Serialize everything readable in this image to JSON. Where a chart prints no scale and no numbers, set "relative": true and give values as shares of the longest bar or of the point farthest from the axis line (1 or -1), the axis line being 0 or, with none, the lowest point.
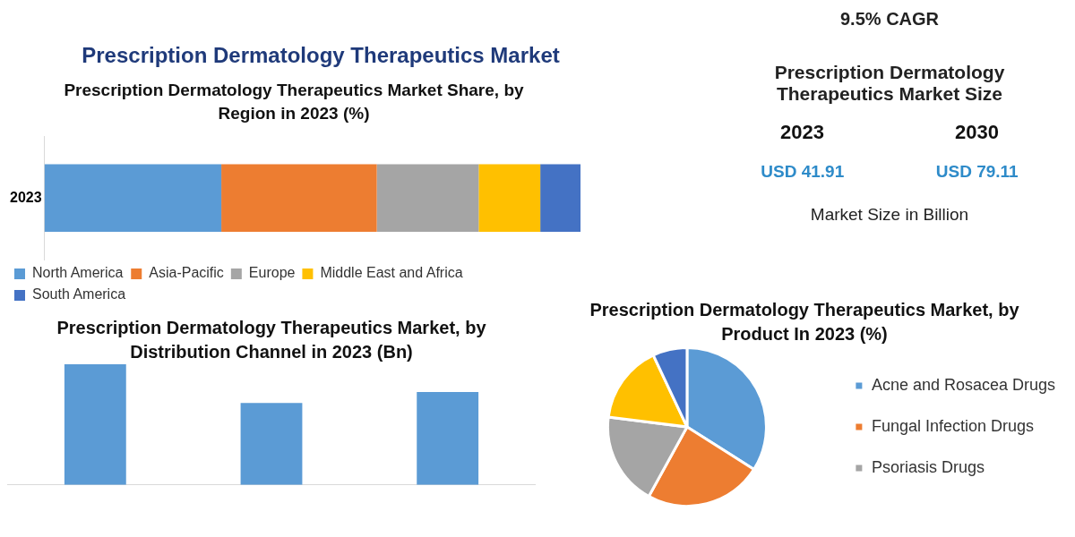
{
  "chart_data": [
    {
      "type": "bar",
      "title": "Prescription Dermatology Therapeutics Market",
      "subtitle": "Prescription Dermatology Therapeutics Market Share, by Region in 2023 (%)",
      "orientation": "horizontal",
      "stacked": true,
      "relative": true,
      "legend": "bottom",
      "categories": [
        "2023"
      ],
      "series": [
        {
          "name": "North America",
          "color": "#5b9bd5",
          "values": [
            0.33
          ]
        },
        {
          "name": "Asia-Pacific",
          "color": "#ed7d31",
          "values": [
            0.29
          ]
        },
        {
          "name": "Europe",
          "color": "#a5a5a5",
          "values": [
            0.19
          ]
        },
        {
          "name": "Middle East and Africa",
          "color": "#ffc000",
          "values": [
            0.115
          ]
        },
        {
          "name": "South America",
          "color": "#4472c4",
          "values": [
            0.075
          ]
        }
      ]
    },
    {
      "type": "other",
      "annotations": [
        "9.5% CAGR",
        "Prescription Dermatology Therapeutics Market Size",
        "2023",
        "2030",
        "USD 41.91",
        "USD 79.11",
        "Market Size in Billion"
      ]
    },
    {
      "type": "bar",
      "title": "Prescription Dermatology Therapeutics Market, by Distribution Channel in 2023 (Bn)",
      "relative": true,
      "categories": [
        null,
        null,
        null
      ],
      "values": [
        1,
        0.68,
        0.77
      ],
      "color": "#5b9bd5"
    },
    {
      "type": "pie",
      "title": "Prescription Dermatology Therapeutics Market, by Product In 2023 (%)",
      "legend": "right",
      "categories": [
        "Acne and Rosacea Drugs",
        "Fungal Infection Drugs",
        "Psoriasis Drugs",
        null,
        null
      ],
      "values": [
        34,
        24,
        19,
        16,
        7
      ],
      "colors": [
        "#5b9bd5",
        "#ed7d31",
        "#a5a5a5",
        "#ffc000",
        "#4472c4"
      ]
    }
  ]
}
